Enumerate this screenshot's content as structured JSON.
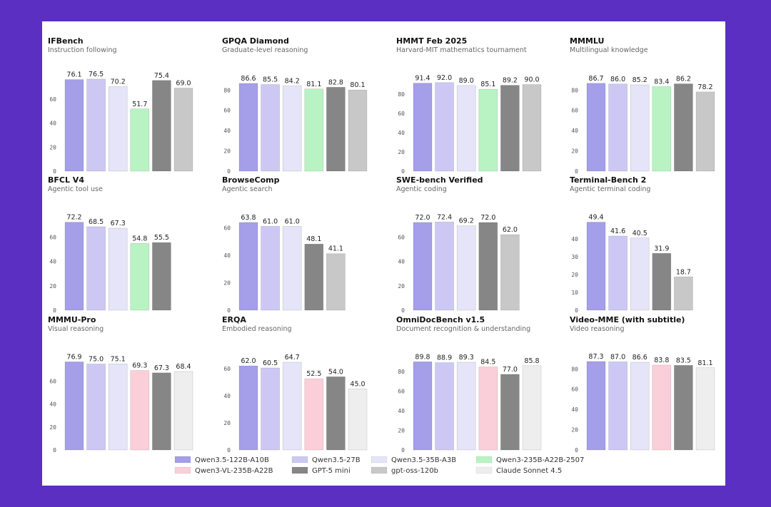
{
  "models": [
    {
      "name": "Qwen3.5-122B-A10B",
      "color": "#a59ee8"
    },
    {
      "name": "Qwen3.5-27B",
      "color": "#cdc8f3"
    },
    {
      "name": "Qwen3.5-35B-A3B",
      "color": "#e6e4f8"
    },
    {
      "name": "Qwen3-235B-A22B-2507",
      "color": "#b9f3c3"
    },
    {
      "name": "Qwen3-VL-235B-A22B",
      "color": "#fbcfd9"
    },
    {
      "name": "GPT-5 mini",
      "color": "#868686"
    },
    {
      "name": "gpt-oss-120b",
      "color": "#c8c8c8"
    },
    {
      "name": "Claude Sonnet 4.5",
      "color": "#eeeeee"
    }
  ],
  "legend_order": [
    0,
    1,
    2,
    3,
    4,
    5,
    6,
    7
  ],
  "chart_data": [
    {
      "type": "bar",
      "title": "IFBench",
      "subtitle": "Instruction following",
      "ylim": [
        0,
        80
      ],
      "yticks": [
        0,
        20,
        40,
        60
      ],
      "models": [
        0,
        1,
        2,
        3,
        5,
        6
      ],
      "values": [
        76.1,
        76.5,
        70.2,
        51.7,
        75.4,
        69.0
      ],
      "labels": [
        "76.1",
        "76.5",
        "70.2",
        "51.7",
        "75.4",
        "69.0"
      ]
    },
    {
      "type": "bar",
      "title": "GPQA Diamond",
      "subtitle": "Graduate-level reasoning",
      "ylim": [
        0,
        95
      ],
      "yticks": [
        0,
        20,
        40,
        60,
        80
      ],
      "models": [
        0,
        1,
        2,
        3,
        5,
        6
      ],
      "values": [
        86.6,
        85.5,
        84.2,
        81.1,
        82.8,
        80.1
      ],
      "labels": [
        "86.6",
        "85.5",
        "84.2",
        "81.1",
        "82.8",
        "80.1"
      ]
    },
    {
      "type": "bar",
      "title": "HMMT Feb 2025",
      "subtitle": "Harvard-MIT mathematics tournament",
      "ylim": [
        0,
        100
      ],
      "yticks": [
        0,
        20,
        40,
        60,
        80
      ],
      "models": [
        0,
        1,
        2,
        3,
        5,
        6
      ],
      "values": [
        91.4,
        92.0,
        89.0,
        85.1,
        89.2,
        90.0
      ],
      "labels": [
        "91.4",
        "92.0",
        "89.0",
        "85.1",
        "89.2",
        "90.0"
      ]
    },
    {
      "type": "bar",
      "title": "MMMLU",
      "subtitle": "Multilingual knowledge",
      "ylim": [
        0,
        95
      ],
      "yticks": [
        0,
        20,
        40,
        60,
        80
      ],
      "models": [
        0,
        1,
        2,
        3,
        5,
        6
      ],
      "values": [
        86.7,
        86.0,
        85.2,
        83.4,
        86.2,
        78.2
      ],
      "labels": [
        "86.7",
        "86.0",
        "85.2",
        "83.4",
        "86.2",
        "78.2"
      ]
    },
    {
      "type": "bar",
      "title": "BFCL V4",
      "subtitle": "Agentic tool use",
      "ylim": [
        0,
        79
      ],
      "yticks": [
        0,
        20,
        40,
        60
      ],
      "models": [
        0,
        1,
        2,
        3,
        5
      ],
      "values": [
        72.2,
        68.5,
        67.3,
        54.8,
        55.5
      ],
      "labels": [
        "72.2",
        "68.5",
        "67.3",
        "54.8",
        "55.5"
      ]
    },
    {
      "type": "bar",
      "title": "BrowseComp",
      "subtitle": "Agentic search",
      "ylim": [
        0,
        70
      ],
      "yticks": [
        0,
        20,
        40,
        60
      ],
      "models": [
        0,
        1,
        2,
        5,
        6
      ],
      "values": [
        63.8,
        61.0,
        61.0,
        48.1,
        41.1
      ],
      "labels": [
        "63.8",
        "61.0",
        "61.0",
        "48.1",
        "41.1"
      ]
    },
    {
      "type": "bar",
      "title": "SWE-bench Verified",
      "subtitle": "Agentic coding",
      "ylim": [
        0,
        79
      ],
      "yticks": [
        0,
        20,
        40,
        60
      ],
      "models": [
        0,
        1,
        2,
        5,
        6
      ],
      "values": [
        72.0,
        72.4,
        69.2,
        72.0,
        62.0
      ],
      "labels": [
        "72.0",
        "72.4",
        "69.2",
        "72.0",
        "62.0"
      ]
    },
    {
      "type": "bar",
      "title": "Terminal-Bench 2",
      "subtitle": "Agentic terminal coding",
      "ylim": [
        0,
        54
      ],
      "yticks": [
        0,
        10,
        20,
        30,
        40
      ],
      "models": [
        0,
        1,
        2,
        5,
        6
      ],
      "values": [
        49.4,
        41.6,
        40.5,
        31.9,
        18.7
      ],
      "labels": [
        "49.4",
        "41.6",
        "40.5",
        "31.9",
        "18.7"
      ]
    },
    {
      "type": "bar",
      "title": "MMMU-Pro",
      "subtitle": "Visual reasoning",
      "ylim": [
        0,
        84
      ],
      "yticks": [
        0,
        20,
        40,
        60
      ],
      "models": [
        0,
        1,
        2,
        4,
        5,
        7
      ],
      "values": [
        76.9,
        75.0,
        75.1,
        69.3,
        67.3,
        68.4
      ],
      "labels": [
        "76.9",
        "75.0",
        "75.1",
        "69.3",
        "67.3",
        "68.4"
      ]
    },
    {
      "type": "bar",
      "title": "ERQA",
      "subtitle": "Embodied reasoning",
      "ylim": [
        0,
        71
      ],
      "yticks": [
        0,
        20,
        40,
        60
      ],
      "models": [
        0,
        1,
        2,
        4,
        5,
        7
      ],
      "values": [
        62.0,
        60.5,
        64.7,
        52.5,
        54.0,
        45.0
      ],
      "labels": [
        "62.0",
        "60.5",
        "64.7",
        "52.5",
        "54.0",
        "45.0"
      ]
    },
    {
      "type": "bar",
      "title": "OmniDocBench v1.5",
      "subtitle": "Document recognition & understanding",
      "ylim": [
        0,
        98
      ],
      "yticks": [
        0,
        20,
        40,
        60,
        80
      ],
      "models": [
        0,
        1,
        2,
        4,
        5,
        7
      ],
      "values": [
        89.8,
        88.9,
        89.3,
        84.5,
        77.0,
        85.8
      ],
      "labels": [
        "89.8",
        "88.9",
        "89.3",
        "84.5",
        "77.0",
        "85.8"
      ]
    },
    {
      "type": "bar",
      "title": "Video-MME (with subtitle)",
      "subtitle": "Video reasoning",
      "ylim": [
        0,
        95
      ],
      "yticks": [
        0,
        20,
        40,
        60,
        80
      ],
      "models": [
        0,
        1,
        2,
        4,
        5,
        7
      ],
      "values": [
        87.3,
        87.0,
        86.6,
        83.8,
        83.5,
        81.1
      ],
      "labels": [
        "87.3",
        "87.0",
        "86.6",
        "83.8",
        "83.5",
        "81.1"
      ]
    }
  ]
}
